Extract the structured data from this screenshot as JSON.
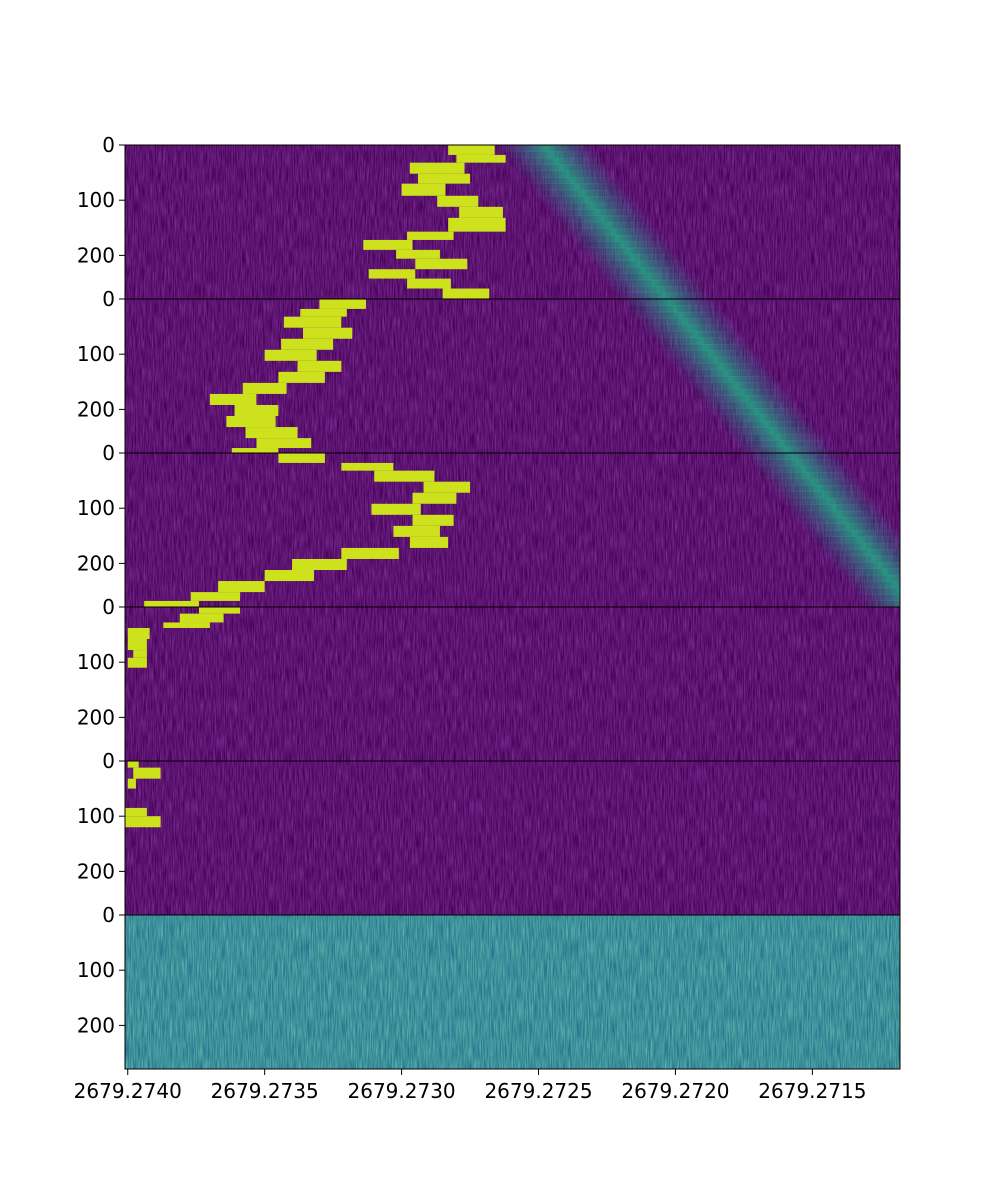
{
  "chart_data": {
    "type": "heatmap",
    "colormap": "viridis",
    "colors": {
      "background": "#440154",
      "noise_dark": "#46085c",
      "signal_bright": "#cde11d",
      "drift_band": "#22a884",
      "bottom_panel": "#2a788e",
      "separator": "#000000"
    },
    "grid": false,
    "legend": "none",
    "title": "",
    "xlabel": "",
    "ylabel": "",
    "x_axis": {
      "xlim": [
        2679.27401,
        2679.27118
      ],
      "ticks": [
        2679.274,
        2679.2735,
        2679.273,
        2679.2725,
        2679.272,
        2679.2715
      ],
      "tick_labels": [
        "2679.2740",
        "2679.2735",
        "2679.2730",
        "2679.2725",
        "2679.2720",
        "2679.2715"
      ]
    },
    "panels": [
      {
        "ylim": [
          0,
          279
        ],
        "y_ticks": [
          0,
          100,
          200
        ],
        "y_tick_labels": [
          "0",
          "100",
          "200"
        ],
        "drift_band": {
          "x_at_row0": 2679.27248,
          "slope_per_row": -1.6e-06,
          "intensity": 0.55
        },
        "bright_segments": [
          [
            0,
            18,
            2679.27283,
            2679.27266
          ],
          [
            18,
            32,
            2679.2728,
            2679.27262
          ],
          [
            32,
            52,
            2679.27297,
            2679.27277
          ],
          [
            52,
            70,
            2679.27294,
            2679.27275
          ],
          [
            70,
            92,
            2679.273,
            2679.27284
          ],
          [
            92,
            112,
            2679.27287,
            2679.27272
          ],
          [
            112,
            132,
            2679.27279,
            2679.27263
          ],
          [
            132,
            157,
            2679.27283,
            2679.27262
          ],
          [
            157,
            172,
            2679.27298,
            2679.27281
          ],
          [
            172,
            190,
            2679.27314,
            2679.27296
          ],
          [
            190,
            206,
            2679.27302,
            2679.27286
          ],
          [
            206,
            225,
            2679.27295,
            2679.27276
          ],
          [
            225,
            242,
            2679.27312,
            2679.27295
          ],
          [
            242,
            260,
            2679.27298,
            2679.27282
          ],
          [
            260,
            279,
            2679.27285,
            2679.27268
          ]
        ]
      },
      {
        "ylim": [
          0,
          279
        ],
        "y_ticks": [
          0,
          100,
          200
        ],
        "y_tick_labels": [
          "0",
          "100",
          "200"
        ],
        "drift_band": {
          "x_at_row0": 2679.27203,
          "slope_per_row": -1.6e-06,
          "intensity": 0.55
        },
        "bright_segments": [
          [
            0,
            18,
            2679.2733,
            2679.27313
          ],
          [
            18,
            32,
            2679.27337,
            2679.2732
          ],
          [
            32,
            52,
            2679.27343,
            2679.27322
          ],
          [
            52,
            72,
            2679.27336,
            2679.27318
          ],
          [
            72,
            92,
            2679.27344,
            2679.27325
          ],
          [
            92,
            112,
            2679.2735,
            2679.27331
          ],
          [
            112,
            132,
            2679.27338,
            2679.27322
          ],
          [
            132,
            152,
            2679.27345,
            2679.27328
          ],
          [
            152,
            172,
            2679.27358,
            2679.27342
          ],
          [
            172,
            192,
            2679.2737,
            2679.27353
          ],
          [
            192,
            212,
            2679.27361,
            2679.27345
          ],
          [
            212,
            232,
            2679.27364,
            2679.27346
          ],
          [
            232,
            252,
            2679.27357,
            2679.27338
          ],
          [
            252,
            270,
            2679.27353,
            2679.27333
          ],
          [
            270,
            279,
            2679.27362,
            2679.27345
          ]
        ]
      },
      {
        "ylim": [
          0,
          279
        ],
        "y_ticks": [
          0,
          100,
          200
        ],
        "y_tick_labels": [
          "0",
          "100",
          "200"
        ],
        "drift_band": {
          "x_at_row0": 2679.27158,
          "slope_per_row": -1.6e-06,
          "intensity": 0.55
        },
        "bright_segments": [
          [
            0,
            18,
            2679.27345,
            2679.27328
          ],
          [
            18,
            32,
            2679.27322,
            2679.27303
          ],
          [
            32,
            52,
            2679.2731,
            2679.27288
          ],
          [
            52,
            72,
            2679.27292,
            2679.27275
          ],
          [
            72,
            92,
            2679.27296,
            2679.2728
          ],
          [
            92,
            112,
            2679.27311,
            2679.27293
          ],
          [
            112,
            132,
            2679.27296,
            2679.27281
          ],
          [
            132,
            152,
            2679.27303,
            2679.27286
          ],
          [
            152,
            172,
            2679.27297,
            2679.27283
          ],
          [
            172,
            192,
            2679.27322,
            2679.27301
          ],
          [
            192,
            212,
            2679.2734,
            2679.2732
          ],
          [
            212,
            232,
            2679.2735,
            2679.27332
          ],
          [
            232,
            252,
            2679.27367,
            2679.2735
          ],
          [
            252,
            268,
            2679.27377,
            2679.27359
          ],
          [
            268,
            279,
            2679.27394,
            2679.27374
          ]
        ]
      },
      {
        "ylim": [
          0,
          279
        ],
        "y_ticks": [
          0,
          100,
          200
        ],
        "y_tick_labels": [
          "0",
          "100",
          "200"
        ],
        "bright_segments": [
          [
            0,
            12,
            2679.27374,
            2679.27359
          ],
          [
            12,
            28,
            2679.27381,
            2679.27365
          ],
          [
            28,
            38,
            2679.27387,
            2679.2737
          ],
          [
            38,
            58,
            2679.274,
            2679.27392
          ],
          [
            58,
            78,
            2679.274,
            2679.27393
          ],
          [
            78,
            92,
            2679.27398,
            2679.27393
          ],
          [
            92,
            110,
            2679.274,
            2679.27393
          ]
        ]
      },
      {
        "ylim": [
          0,
          279
        ],
        "y_ticks": [
          0,
          100,
          200
        ],
        "y_tick_labels": [
          "0",
          "100",
          "200"
        ],
        "bright_segments": [
          [
            0,
            12,
            2679.274,
            2679.27396
          ],
          [
            12,
            32,
            2679.27398,
            2679.27388
          ],
          [
            32,
            50,
            2679.274,
            2679.27397
          ],
          [
            85,
            100,
            2679.27401,
            2679.27393
          ],
          [
            100,
            120,
            2679.27401,
            2679.27388
          ]
        ]
      },
      {
        "ylim": [
          0,
          279
        ],
        "y_ticks": [
          0,
          100,
          200
        ],
        "y_tick_labels": [
          "0",
          "100",
          "200"
        ],
        "noise_floor": "high",
        "bright_segments": []
      }
    ]
  }
}
